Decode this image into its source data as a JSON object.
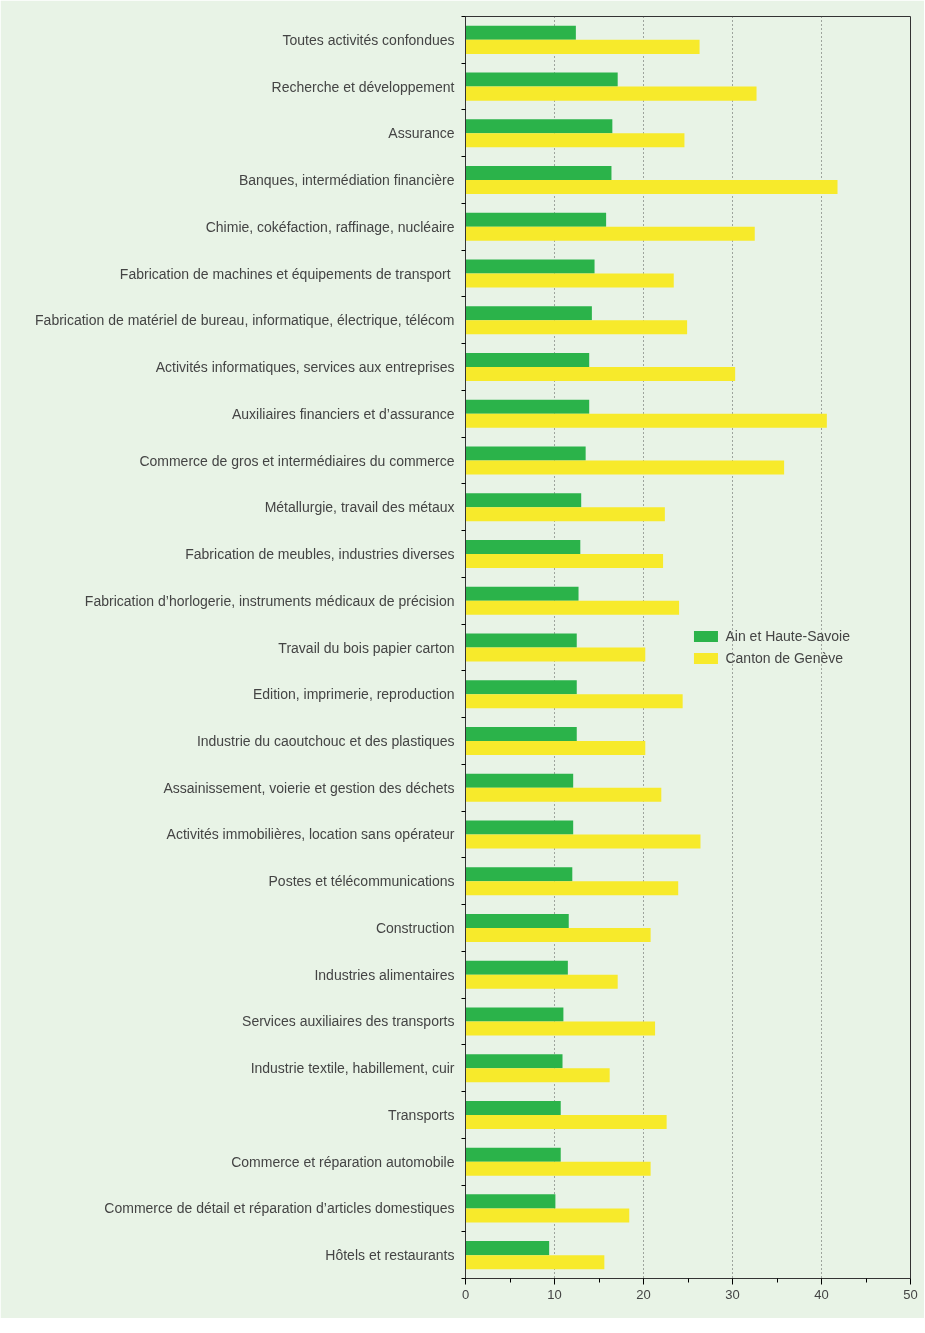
{
  "chart_data": {
    "type": "bar",
    "orientation": "horizontal",
    "categories": [
      "Toutes activités confondues",
      "Recherche et développement",
      "Assurance",
      "Banques, intermédiation financière",
      "Chimie, cokéfaction, raffinage, nucléaire",
      "Fabrication de machines et équipements  de transport",
      "Fabrication de matériel de bureau, informatique, électrique, télécom",
      "Activités informatiques, services aux entreprises",
      "Auxiliaires financiers et d’assurance",
      "Commerce de gros et intermédiaires du commerce",
      "Métallurgie, travail des métaux",
      "Fabrication de meubles, industries diverses",
      "Fabrication d’horlogerie, instruments médicaux de précision",
      "Travail du bois papier carton",
      "Edition, imprimerie, reproduction",
      "Industrie du caoutchouc et des plastiques",
      "Assainissement, voierie et gestion des déchets",
      "Activités immobilières, location sans opérateur",
      "Postes et télécommunications",
      "Construction",
      "Industries alimentaires",
      "Services auxiliaires des transports",
      "Industrie textile, habillement, cuir",
      "Transports",
      "Commerce et réparation automobile",
      "Commerce de détail et réparation d’articles domestiques",
      "Hôtels et restaurants"
    ],
    "series": [
      {
        "name": "Ain et Haute-Savoie",
        "color": "#2bb34a",
        "values": [
          12.4,
          17.1,
          16.5,
          16.4,
          15.8,
          14.5,
          14.2,
          13.9,
          13.9,
          13.5,
          13.0,
          12.9,
          12.7,
          12.5,
          12.5,
          12.5,
          12.1,
          12.1,
          12.0,
          11.6,
          11.5,
          11.0,
          10.9,
          10.7,
          10.7,
          10.1,
          9.4
        ]
      },
      {
        "name": "Canton de Genève",
        "color": "#f7ea2b",
        "values": [
          26.3,
          32.7,
          24.6,
          41.8,
          32.5,
          23.4,
          24.9,
          30.3,
          40.6,
          35.8,
          22.4,
          22.2,
          24.0,
          20.2,
          24.4,
          20.2,
          22.0,
          26.4,
          23.9,
          20.8,
          17.1,
          21.3,
          16.2,
          22.6,
          20.8,
          18.4,
          15.6
        ]
      }
    ],
    "xlim": [
      0,
      50
    ],
    "xticks": [
      0,
      10,
      20,
      30,
      40,
      50
    ],
    "grid": "x",
    "legend": "right"
  }
}
